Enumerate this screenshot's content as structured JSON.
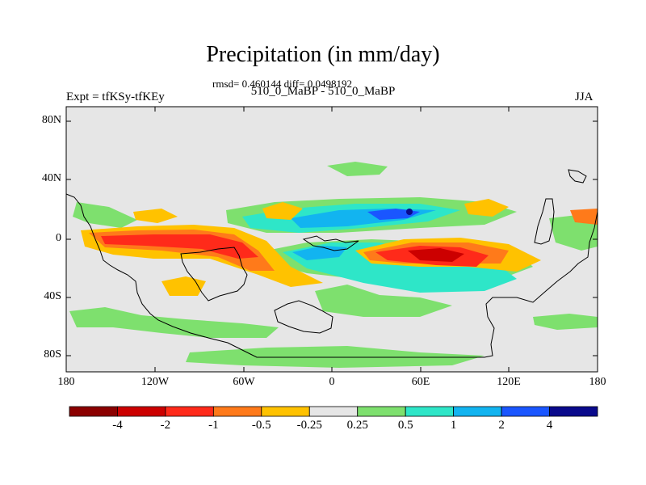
{
  "title": "Precipitation (in mm/day)",
  "stats": "rmsd= 0.460144 diff= 0.0498192",
  "subtitle": "510_0_MaBP - 510_0_MaBP",
  "left_label": "Expt = tfKSy-tfKEy",
  "right_label": "JJA",
  "lat_ticks": [
    "80N",
    "40N",
    "0",
    "40S",
    "80S"
  ],
  "lon_ticks": [
    "180",
    "120W",
    "60W",
    "0",
    "60E",
    "120E",
    "180"
  ],
  "colorbar": {
    "labels": [
      "-4",
      "-2",
      "-1",
      "-0.5",
      "-0.25",
      "0.25",
      "0.5",
      "1",
      "2",
      "4"
    ],
    "colors": [
      "#8b0000",
      "#cc0000",
      "#ff2a1a",
      "#ff7a1a",
      "#ffc200",
      "#e6e6e6",
      "#7ee06e",
      "#2ee6c8",
      "#12b4f0",
      "#1a56ff",
      "#0a0a8c"
    ]
  },
  "map_colors": {
    "background": "#e6e6e6",
    "coast": "#000000"
  }
}
